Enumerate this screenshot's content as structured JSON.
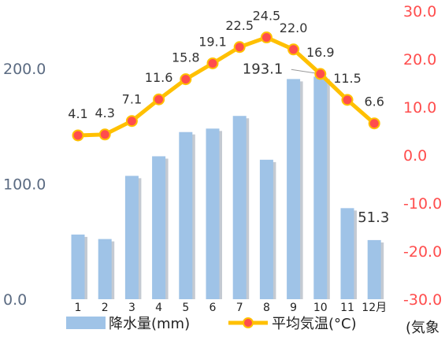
{
  "chart_data": {
    "type": "bar",
    "categories": [
      "1",
      "2",
      "3",
      "4",
      "5",
      "6",
      "7",
      "8",
      "9",
      "10",
      "11",
      "12"
    ],
    "month_suffix": "月",
    "series": [
      {
        "name": "降水量(mm)",
        "kind": "bar",
        "axis": "left",
        "color": "#9fc3e7",
        "values": [
          56.1,
          52.2,
          107.0,
          124.0,
          145.0,
          148.0,
          159.0,
          121.0,
          191.0,
          193.1,
          79.0,
          51.3
        ],
        "labels_shown": {
          "9": "193.1",
          "11": "51.3"
        }
      },
      {
        "name": "平均気温(°C)",
        "kind": "line",
        "axis": "right",
        "line_color": "#ffc000",
        "marker_fill": "#ff4d4d",
        "marker_edge": "#ffc000",
        "values": [
          4.1,
          4.3,
          7.1,
          11.6,
          15.8,
          19.1,
          22.5,
          24.5,
          22.0,
          16.9,
          11.5,
          6.6
        ],
        "labels": [
          "4.1",
          "4.3",
          "7.1",
          "11.6",
          "15.8",
          "19.1",
          "22.5",
          "24.5",
          "22.0",
          "16.9",
          "11.5",
          "6.6"
        ]
      }
    ],
    "left_axis": {
      "ticks": [
        "0.0",
        "100.0",
        "200.0"
      ],
      "ylim": [
        0,
        250
      ],
      "color": "#5b6b82"
    },
    "right_axis": {
      "ticks": [
        "-30.0",
        "-20.0",
        "-10.0",
        "0.0",
        "10.0",
        "20.0",
        "30.0"
      ],
      "ylim": [
        -30,
        30
      ],
      "color": "#ff4d4d"
    },
    "legend_placement": "bottom",
    "grid": false
  },
  "legend": {
    "bar_label": "降水量(mm)",
    "line_label": "平均気温(°C)"
  },
  "source_note": "(気象"
}
